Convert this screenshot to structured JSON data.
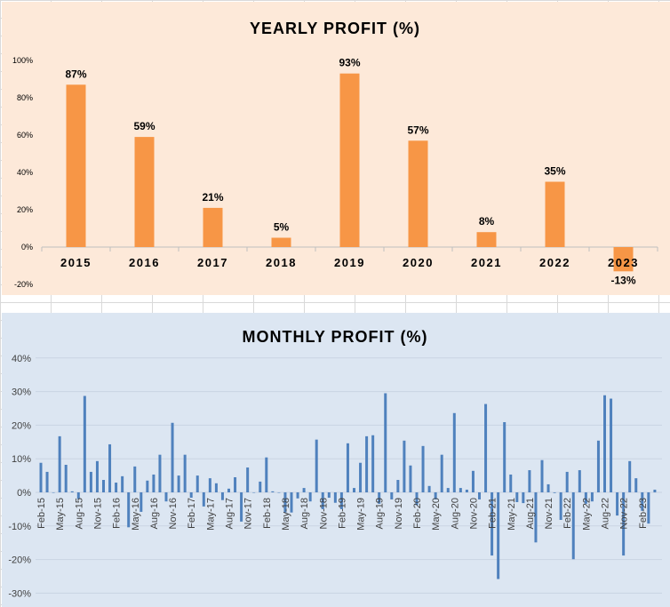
{
  "chart_data": [
    {
      "type": "bar",
      "title": "YEARLY PROFIT (%)",
      "categories": [
        "2015",
        "2016",
        "2017",
        "2018",
        "2019",
        "2020",
        "2021",
        "2022",
        "2023"
      ],
      "values": [
        87,
        59,
        21,
        5,
        93,
        57,
        8,
        35,
        -13
      ],
      "data_labels": [
        "87%",
        "59%",
        "21%",
        "5%",
        "93%",
        "57%",
        "8%",
        "35%",
        "-13%"
      ],
      "yticks": [
        "100%",
        "80%",
        "60%",
        "40%",
        "20%",
        "0%",
        "-20%"
      ],
      "ylim": [
        -20,
        100
      ],
      "grid": false,
      "bar_color": "#f79646",
      "background": "#fde9d9"
    },
    {
      "type": "bar",
      "title": "MONTHLY PROFIT (%)",
      "start_month": "Feb-15",
      "xtick_labels": [
        "Feb-15",
        "May-15",
        "Aug-15",
        "Nov-15",
        "Feb-16",
        "May-16",
        "Aug-16",
        "Nov-16",
        "Feb-17",
        "May-17",
        "Aug-17",
        "Nov-17",
        "Feb-18",
        "May-18",
        "Aug-18",
        "Nov-18",
        "Feb-19",
        "May-19",
        "Aug-19",
        "Nov-19",
        "Feb-20",
        "May-20",
        "Aug-20",
        "Nov-20",
        "Feb-21",
        "May-21",
        "Aug-21",
        "Nov-21",
        "Feb-22",
        "May-22",
        "Aug-22",
        "Nov-22",
        "Feb-23"
      ],
      "values": [
        8.8,
        6.1,
        0,
        16.7,
        8.2,
        0.3,
        -2,
        28.7,
        6.1,
        9.3,
        3.7,
        14.3,
        2.9,
        4.8,
        -10.4,
        7.7,
        -5.8,
        3.5,
        5.3,
        11.2,
        -2.7,
        20.7,
        5.0,
        11.2,
        -1.6,
        5,
        -4.2,
        4.2,
        2.7,
        -2.3,
        1.1,
        4.5,
        -8.7,
        7.4,
        0,
        3.2,
        10.4,
        0.3,
        0,
        -6,
        -6,
        -1.8,
        1.3,
        -2.7,
        15.7,
        -5,
        -1.6,
        -3.1,
        -5,
        14.6,
        1.3,
        8.8,
        16.7,
        17.0,
        -3.4,
        29.5,
        -2.1,
        3.7,
        15.4,
        8.0,
        -3.8,
        13.8,
        1.9,
        -2.1,
        11.2,
        1.3,
        23.6,
        1.3,
        0.8,
        6.4,
        -2.1,
        26.3,
        -18.8,
        -25.8,
        20.9,
        5.3,
        -2.9,
        -3.2,
        6.6,
        -14.9,
        9.6,
        2.4,
        -0.2,
        -8.2,
        6.1,
        -19.9,
        6.6,
        -3.4,
        -2.7,
        15.4,
        28.9,
        27.9,
        -6.9,
        -18.8,
        9.3,
        4.2,
        -5.5,
        -9.3,
        0.8
      ],
      "yticks": [
        "40%",
        "30%",
        "20%",
        "10%",
        "0%",
        "-10%",
        "-20%",
        "-30%"
      ],
      "ylim": [
        -30,
        40
      ],
      "grid": true,
      "bar_color": "#4f81bd",
      "background": "#dce6f2"
    }
  ]
}
